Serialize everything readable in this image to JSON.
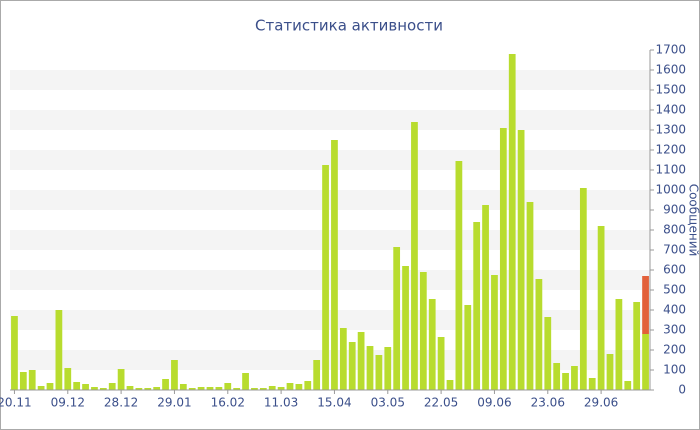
{
  "chart_data": {
    "type": "bar",
    "title": "Статистика активности",
    "y_label": "Сообщений",
    "categories": [
      "20.11",
      null,
      null,
      null,
      null,
      null,
      "09.12",
      null,
      null,
      null,
      null,
      null,
      "28.12",
      null,
      null,
      null,
      null,
      null,
      "29.01",
      null,
      null,
      null,
      null,
      null,
      "16.02",
      null,
      null,
      null,
      null,
      null,
      "11.03",
      null,
      null,
      null,
      null,
      null,
      "15.04",
      null,
      null,
      null,
      null,
      null,
      "03.05",
      null,
      null,
      null,
      null,
      null,
      "22.05",
      null,
      null,
      null,
      null,
      null,
      "09.06",
      null,
      null,
      null,
      null,
      null,
      "23.06",
      null,
      null,
      null,
      null,
      null,
      "29.06",
      null,
      null,
      null,
      null,
      null
    ],
    "series": [
      {
        "color": "#b8dc2e",
        "values": [
          370,
          90,
          100,
          20,
          35,
          400,
          110,
          40,
          30,
          15,
          10,
          35,
          105,
          20,
          10,
          10,
          15,
          55,
          150,
          30,
          10,
          15,
          15,
          15,
          35,
          10,
          85,
          10,
          10,
          20,
          15,
          35,
          30,
          45,
          150,
          1125,
          1250,
          310,
          240,
          290,
          220,
          175,
          215,
          715,
          620,
          1340,
          590,
          455,
          265,
          50,
          1145,
          425,
          840,
          925,
          575,
          1310,
          1680,
          1300,
          940,
          555,
          365,
          135,
          85,
          120,
          1010,
          60,
          820,
          180,
          455,
          45,
          440,
          280
        ]
      },
      {
        "color": "#e2603a",
        "values": [
          null,
          null,
          null,
          null,
          null,
          null,
          null,
          null,
          null,
          null,
          null,
          null,
          null,
          null,
          null,
          null,
          null,
          null,
          null,
          null,
          null,
          null,
          null,
          null,
          null,
          null,
          null,
          null,
          null,
          null,
          null,
          null,
          null,
          null,
          null,
          null,
          null,
          null,
          null,
          null,
          null,
          null,
          null,
          null,
          null,
          null,
          null,
          null,
          null,
          null,
          null,
          null,
          null,
          null,
          null,
          null,
          null,
          null,
          null,
          null,
          null,
          null,
          null,
          null,
          null,
          null,
          null,
          null,
          null,
          null,
          null,
          290
        ]
      }
    ],
    "stacked": true,
    "ylim": [
      0,
      1700
    ],
    "yticks": [
      0,
      100,
      200,
      300,
      400,
      500,
      600,
      700,
      800,
      900,
      1000,
      1100,
      1200,
      1300,
      1400,
      1500,
      1600,
      1700
    ],
    "y_axis_side": "right",
    "grid": true
  }
}
